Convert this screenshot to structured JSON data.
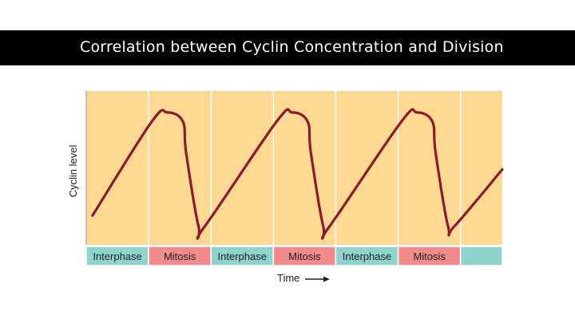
{
  "header": {
    "title": "Correlation between Cyclin Concentration and Division"
  },
  "chart_data": {
    "type": "line",
    "title": "Correlation between Cyclin Concentration and Division",
    "xlabel": "Time",
    "ylabel": "Cyclin level",
    "xlim": [
      0,
      6.67
    ],
    "ylim": [
      0,
      1
    ],
    "grid": false,
    "phases": [
      {
        "label": "Interphase",
        "start": 0,
        "end": 1
      },
      {
        "label": "Mitosis",
        "start": 1,
        "end": 2
      },
      {
        "label": "Interphase",
        "start": 2,
        "end": 3
      },
      {
        "label": "Mitosis",
        "start": 3,
        "end": 4
      },
      {
        "label": "Interphase",
        "start": 4,
        "end": 5
      },
      {
        "label": "Mitosis",
        "start": 5,
        "end": 6
      },
      {
        "label": "",
        "start": 6,
        "end": 6.67
      }
    ],
    "series": [
      {
        "name": "Cyclin level",
        "x": [
          0.1,
          1.05,
          1.3,
          1.55,
          1.6,
          1.8,
          1.9,
          3.05,
          3.3,
          3.55,
          3.6,
          3.8,
          3.9,
          5.05,
          5.3,
          5.55,
          5.6,
          5.8,
          5.9,
          6.67
        ],
        "y": [
          0.19,
          0.8,
          0.86,
          0.8,
          0.6,
          0.12,
          0.12,
          0.8,
          0.86,
          0.8,
          0.6,
          0.12,
          0.12,
          0.8,
          0.86,
          0.8,
          0.6,
          0.12,
          0.12,
          0.49
        ]
      }
    ],
    "colors": {
      "plot_background": "#fcd893",
      "divider": "#ffffff",
      "curve": "#8b1a2b",
      "interphase": "#8fd3cd",
      "mitosis": "#f28b8b",
      "axis": "#999999"
    }
  }
}
